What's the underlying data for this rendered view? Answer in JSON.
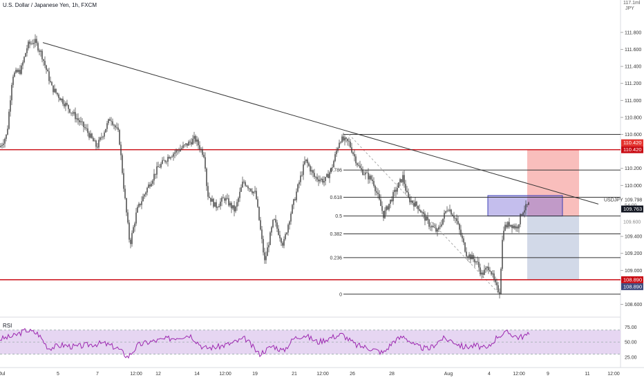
{
  "header": {
    "title": "U.S. Dollar / Japanese Yen, 1h, FXCM"
  },
  "price_axis": {
    "currency_top": "117.1ml",
    "currency": "JPY",
    "ticks": [
      "111.800",
      "111.600",
      "111.400",
      "111.200",
      "111.000",
      "110.800",
      "110.600",
      "110.200",
      "110.000",
      "109.400",
      "109.200",
      "109.000",
      "108.600"
    ]
  },
  "labels": {
    "resistance": "110.420",
    "resistance_dup": "110.420",
    "support_red": "108.890",
    "target_blue": "108.890",
    "current_price": "109.763",
    "symbol": "USDJPY",
    "symbol_price": "109.798",
    "countdown": "54:00",
    "hidden_price": "109.600"
  },
  "fib": {
    "levels": [
      "0.786",
      "0.618",
      "0.5",
      "0.382",
      "0.236",
      "0"
    ]
  },
  "rsi": {
    "label": "RSI",
    "ticks": [
      "75.00",
      "50.00",
      "25.00"
    ]
  },
  "time_axis": {
    "labels": [
      "Jul",
      "5",
      "7",
      "12:00",
      "12",
      "14",
      "12:00",
      "19",
      "21",
      "12:00",
      "26",
      "28",
      "Aug",
      "4",
      "12:00",
      "9",
      "11",
      "12:00"
    ]
  },
  "chart_data": {
    "type": "candlestick",
    "symbol": "USDJPY",
    "interval": "1h",
    "ylim": [
      108.45,
      112.1
    ],
    "resistance_level": 110.42,
    "support_level": 108.89,
    "current_price": 109.763,
    "fib_levels": [
      {
        "ratio": 0,
        "price": 108.72
      },
      {
        "ratio": 0.236,
        "price": 109.15
      },
      {
        "ratio": 0.382,
        "price": 109.43
      },
      {
        "ratio": 0.5,
        "price": 109.64
      },
      {
        "ratio": 0.618,
        "price": 109.86
      },
      {
        "ratio": 0.786,
        "price": 110.18
      }
    ],
    "fib_high": 110.6,
    "price_path": [
      [
        0,
        110.45
      ],
      [
        10,
        110.6
      ],
      [
        18,
        111.3
      ],
      [
        30,
        111.35
      ],
      [
        40,
        111.65
      ],
      [
        50,
        111.7
      ],
      [
        60,
        111.55
      ],
      [
        75,
        111.15
      ],
      [
        90,
        111.0
      ],
      [
        105,
        110.85
      ],
      [
        125,
        110.65
      ],
      [
        140,
        110.45
      ],
      [
        160,
        110.8
      ],
      [
        172,
        110.6
      ],
      [
        180,
        109.9
      ],
      [
        188,
        109.3
      ],
      [
        198,
        109.7
      ],
      [
        212,
        109.95
      ],
      [
        228,
        110.2
      ],
      [
        245,
        110.35
      ],
      [
        265,
        110.45
      ],
      [
        282,
        110.55
      ],
      [
        296,
        110.35
      ],
      [
        300,
        109.9
      ],
      [
        312,
        109.75
      ],
      [
        325,
        109.85
      ],
      [
        340,
        109.7
      ],
      [
        352,
        110.05
      ],
      [
        370,
        109.9
      ],
      [
        383,
        109.1
      ],
      [
        396,
        109.6
      ],
      [
        410,
        109.3
      ],
      [
        420,
        109.65
      ],
      [
        430,
        109.95
      ],
      [
        442,
        110.3
      ],
      [
        455,
        110.1
      ],
      [
        470,
        110.05
      ],
      [
        480,
        110.2
      ],
      [
        492,
        110.55
      ],
      [
        505,
        110.5
      ],
      [
        520,
        110.2
      ],
      [
        540,
        110.05
      ],
      [
        555,
        109.65
      ],
      [
        570,
        109.9
      ],
      [
        583,
        110.1
      ],
      [
        590,
        109.85
      ],
      [
        605,
        109.75
      ],
      [
        620,
        109.55
      ],
      [
        633,
        109.45
      ],
      [
        648,
        109.75
      ],
      [
        660,
        109.6
      ],
      [
        675,
        109.2
      ],
      [
        690,
        109.1
      ],
      [
        697,
        108.95
      ],
      [
        708,
        109.05
      ],
      [
        718,
        108.8
      ],
      [
        723,
        108.75
      ],
      [
        728,
        109.5
      ],
      [
        738,
        109.55
      ],
      [
        748,
        109.5
      ],
      [
        756,
        109.7
      ],
      [
        766,
        109.78
      ]
    ],
    "position": {
      "entry_price": 109.64,
      "stop_price": 110.42,
      "target_price": 108.89,
      "zone_low": 109.64,
      "zone_high": 109.88
    },
    "rsi_series": [
      [
        0,
        55
      ],
      [
        20,
        60
      ],
      [
        38,
        70
      ],
      [
        55,
        64
      ],
      [
        70,
        40
      ],
      [
        90,
        45
      ],
      [
        110,
        42
      ],
      [
        130,
        46
      ],
      [
        150,
        48
      ],
      [
        170,
        40
      ],
      [
        185,
        25
      ],
      [
        200,
        45
      ],
      [
        215,
        50
      ],
      [
        235,
        54
      ],
      [
        255,
        58
      ],
      [
        275,
        62
      ],
      [
        295,
        40
      ],
      [
        315,
        42
      ],
      [
        335,
        48
      ],
      [
        355,
        56
      ],
      [
        375,
        30
      ],
      [
        395,
        44
      ],
      [
        410,
        35
      ],
      [
        425,
        56
      ],
      [
        440,
        62
      ],
      [
        460,
        50
      ],
      [
        480,
        58
      ],
      [
        495,
        63
      ],
      [
        515,
        45
      ],
      [
        535,
        40
      ],
      [
        555,
        32
      ],
      [
        570,
        52
      ],
      [
        585,
        60
      ],
      [
        600,
        44
      ],
      [
        620,
        38
      ],
      [
        640,
        56
      ],
      [
        655,
        52
      ],
      [
        670,
        42
      ],
      [
        690,
        44
      ],
      [
        705,
        38
      ],
      [
        720,
        60
      ],
      [
        735,
        66
      ],
      [
        750,
        58
      ],
      [
        766,
        62
      ]
    ],
    "rsi_ylim": [
      10,
      88
    ]
  },
  "colors": {
    "red_line": "#c90a12",
    "label_red": "#e5322d",
    "label_blue": "#3f4a7e",
    "rsi_line": "#9c27b0",
    "rsi_band": "#e6d6f2",
    "trendline": "#333333",
    "candles": "#393939"
  }
}
